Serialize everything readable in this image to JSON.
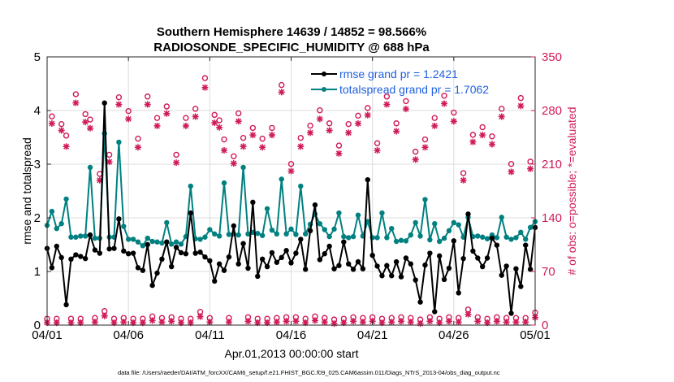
{
  "chart_data": {
    "type": "line",
    "title": "Southern Hemisphere 14639 / 14852 = 98.566%",
    "subtitle": "RADIOSONDE_SPECIFIC_HUMIDITY @ 688 hPa",
    "xlabel": "Apr.01,2013 00:00:00 start",
    "ylabel": "rmse and totalspread",
    "y2label": "# of obs: o=possible; *=evaluated",
    "x_ticks": [
      0,
      5,
      10,
      15,
      20,
      25,
      30
    ],
    "x_tick_labels": [
      "04/01",
      "04/06",
      "04/11",
      "04/16",
      "04/21",
      "04/26",
      "05/01"
    ],
    "xlim": [
      0,
      30
    ],
    "ylim": [
      0,
      5
    ],
    "y_ticks": [
      "0",
      "1",
      "2",
      "3",
      "4",
      "5"
    ],
    "y2lim": [
      0,
      350
    ],
    "y2_ticks": [
      "0",
      "70",
      "140",
      "210",
      "280",
      "350"
    ],
    "colors": {
      "rmse": "#000000",
      "spread": "#008080",
      "obs": "#d01a5a",
      "legend_text": "#1f5fe0"
    },
    "legend_position": "top-right",
    "series": [
      {
        "name": "rmse grand pr = 1.2421",
        "axis": "left",
        "values": [
          1.43,
          1.07,
          1.47,
          1.26,
          0.38,
          1.23,
          1.31,
          1.28,
          1.24,
          1.68,
          1.4,
          1.34,
          4.14,
          1.42,
          1.43,
          1.98,
          1.38,
          1.33,
          1.34,
          1.07,
          1.02,
          1.5,
          0.74,
          0.97,
          1.23,
          1.55,
          1.09,
          1.45,
          1.35,
          1.33,
          2.09,
          1.34,
          1.36,
          1.27,
          1.2,
          0.82,
          1.14,
          1.02,
          1.27,
          1.85,
          1.14,
          1.52,
          1.06,
          2.29,
          0.91,
          1.23,
          1.09,
          1.35,
          1.17,
          1.26,
          1.39,
          1.16,
          1.34,
          1.6,
          1.04,
          1.76,
          2.24,
          1.22,
          1.33,
          1.47,
          1.05,
          1.11,
          1.55,
          1.14,
          1.04,
          1.18,
          1.05,
          2.71,
          1.3,
          1.1,
          0.92,
          1.11,
          0.92,
          1.18,
          0.9,
          1.25,
          1.14,
          0.84,
          0.43,
          1.12,
          1.34,
          0.25,
          1.29,
          0.85,
          1.06,
          1.57,
          0.6,
          1.24,
          2.07,
          1.38,
          1.25,
          1.09,
          1.25,
          1.62,
          1.49,
          0.93,
          1.1,
          0.22,
          1.05,
          0.72,
          1.49,
          1.04,
          1.82
        ]
      },
      {
        "name": "totalspread grand pr = 1.7062",
        "axis": "left",
        "values": [
          1.86,
          2.12,
          1.8,
          1.89,
          2.35,
          1.64,
          1.64,
          1.66,
          1.66,
          2.94,
          1.62,
          1.62,
          3.57,
          1.64,
          1.64,
          3.41,
          1.84,
          1.6,
          1.6,
          1.55,
          1.48,
          1.62,
          1.56,
          1.55,
          1.53,
          1.91,
          1.51,
          1.55,
          1.51,
          1.65,
          2.59,
          1.61,
          1.6,
          1.64,
          1.78,
          1.7,
          1.66,
          2.65,
          1.69,
          1.7,
          1.68,
          2.94,
          1.7,
          1.73,
          1.71,
          1.67,
          2.17,
          1.77,
          1.7,
          2.72,
          1.7,
          1.79,
          1.69,
          2.59,
          1.7,
          1.88,
          2.07,
          1.89,
          1.78,
          1.65,
          1.79,
          2.09,
          1.65,
          1.63,
          1.65,
          2.05,
          1.66,
          1.93,
          1.63,
          1.63,
          2.09,
          1.63,
          1.8,
          1.56,
          1.58,
          1.57,
          1.68,
          1.91,
          1.66,
          2.34,
          1.59,
          1.89,
          1.56,
          1.62,
          1.76,
          1.91,
          1.87,
          1.64,
          2.01,
          1.65,
          1.66,
          1.64,
          1.61,
          1.68,
          1.63,
          2.01,
          1.64,
          1.6,
          1.63,
          1.73,
          1.6,
          1.82,
          1.93
        ]
      },
      {
        "name": "possible obs (o)",
        "axis": "right",
        "values": [
          3,
          267,
          3,
          257,
          242,
          3,
          296,
          3,
          270,
          263,
          4,
          192,
          13,
          217,
          3,
          292,
          4,
          274,
          3,
          238,
          3,
          293,
          6,
          265,
          4,
          280,
          5,
          217,
          3,
          265,
          3,
          277,
          12,
          317,
          4,
          269,
          262,
          237,
          4,
          215,
          271,
          239,
          5,
          252,
          3,
          238,
          3,
          252,
          4,
          308,
          5,
          205,
          5,
          239,
          3,
          255,
          6,
          275,
          4,
          258,
          2,
          229,
          3,
          257,
          5,
          268,
          4,
          278,
          5,
          232,
          3,
          293,
          4,
          258,
          5,
          287,
          4,
          221,
          2,
          237,
          5,
          265,
          3,
          294,
          5,
          272,
          4,
          193,
          15,
          243,
          5,
          253,
          3,
          241,
          5,
          277,
          4,
          205,
          4,
          291,
          4,
          208,
          11
        ]
      },
      {
        "name": "evaluated obs (*)",
        "axis": "right",
        "values": [
          3,
          263,
          3,
          254,
          233,
          3,
          290,
          3,
          265,
          257,
          4,
          189,
          12,
          213,
          3,
          288,
          4,
          269,
          3,
          232,
          3,
          288,
          6,
          260,
          4,
          276,
          5,
          212,
          3,
          260,
          3,
          272,
          11,
          310,
          4,
          264,
          258,
          228,
          4,
          211,
          266,
          233,
          5,
          248,
          3,
          232,
          3,
          248,
          4,
          304,
          5,
          201,
          5,
          233,
          3,
          251,
          6,
          269,
          4,
          254,
          2,
          224,
          3,
          251,
          5,
          263,
          4,
          274,
          5,
          228,
          3,
          288,
          4,
          253,
          5,
          282,
          4,
          216,
          2,
          232,
          5,
          260,
          3,
          289,
          5,
          266,
          4,
          189,
          14,
          239,
          5,
          248,
          3,
          236,
          5,
          272,
          4,
          200,
          4,
          286,
          4,
          204,
          10
        ]
      }
    ]
  },
  "footer": {
    "data_file": "data file: /Users/raeder/DAI/ATM_forcXX/CAM6_setup/f.e21.FHIST_BGC.f09_025.CAM6assim.011/Diags_NTrS_2013-04/obs_diag_output.nc"
  }
}
